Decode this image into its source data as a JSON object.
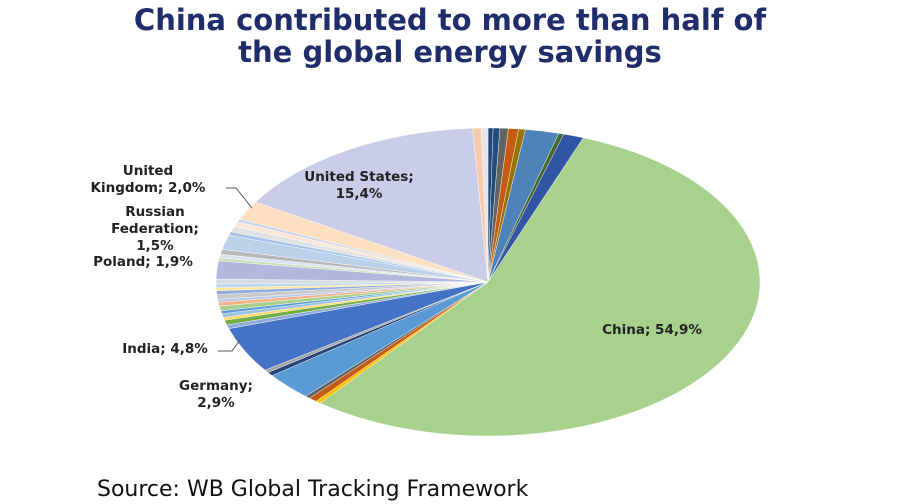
{
  "chart_data": {
    "type": "pie",
    "title_lines": [
      "China contributed to more than half of",
      "the global energy savings"
    ],
    "source": "Source: WB Global Tracking Framework",
    "values": [
      0.3,
      0.4,
      0.5,
      0.6,
      0.4,
      2.0,
      0.3,
      1.2,
      54.9,
      0.3,
      0.5,
      0.3,
      2.9,
      0.4,
      0.3,
      4.8,
      0.4,
      0.5,
      0.3,
      0.4,
      0.3,
      0.5,
      0.4,
      0.3,
      0.5,
      0.4,
      0.3,
      0.4,
      0.5,
      1.9,
      0.3,
      0.4,
      0.5,
      1.5,
      0.4,
      0.6,
      0.5,
      0.3,
      2.0,
      15.4,
      0.5,
      0.4
    ],
    "labels": [
      null,
      null,
      null,
      null,
      null,
      null,
      null,
      null,
      [
        "China; 54,9%"
      ],
      null,
      null,
      null,
      [
        "Germany;",
        "2,9%"
      ],
      null,
      null,
      [
        "India; 4,8%"
      ],
      null,
      null,
      null,
      null,
      null,
      null,
      null,
      null,
      null,
      null,
      null,
      null,
      null,
      [
        "Poland; 1,9%"
      ],
      null,
      null,
      null,
      [
        "Russian",
        "Federation;",
        "1,5%"
      ],
      null,
      null,
      null,
      null,
      [
        "United",
        "Kingdom; 2,0%"
      ],
      [
        "United States;",
        "15,4%"
      ],
      null,
      null
    ],
    "colors": [
      "#264478",
      "#1f4e79",
      "#636363",
      "#c55a11",
      "#997300",
      "#4e83b9",
      "#43682b",
      "#2f55a4",
      "#a9d18e",
      "#ffc000",
      "#c55a11",
      "#636363",
      "#5b9bd5",
      "#264478",
      "#a5a5a5",
      "#4472c4",
      "#8faadc",
      "#70ad47",
      "#ffd966",
      "#9dc3e6",
      "#5b9bd5",
      "#a9d18e",
      "#f4b183",
      "#b4c7e7",
      "#c9c9c9",
      "#8eaadb",
      "#ffe699",
      "#bdd7ee",
      "#d5dce4",
      "#b4b7dd",
      "#c5e0b4",
      "#dae3f3",
      "#b7b7b7",
      "#bdd0ea",
      "#a9c4e8",
      "#e2e2e2",
      "#fbe5d6",
      "#c9d5ea",
      "#fde0c0",
      "#c9cde8",
      "#f8cbad",
      "#e7e6e6"
    ]
  }
}
